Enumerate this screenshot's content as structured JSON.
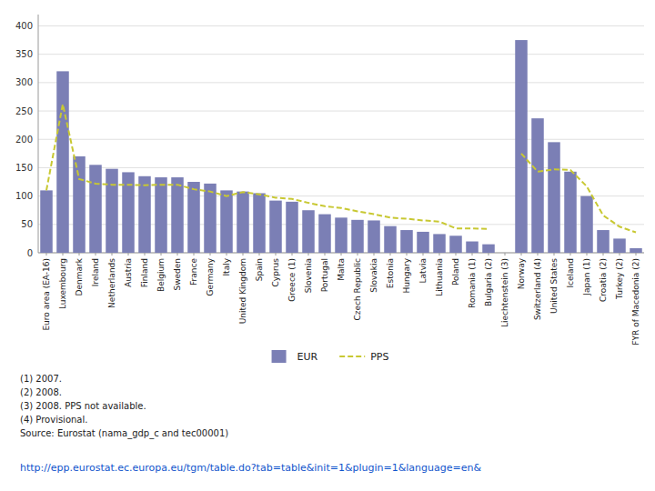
{
  "chart_data": {
    "type": "bar",
    "categories": [
      "Euro area (EA-16)",
      "Luxembourg",
      "Denmark",
      "Ireland",
      "Netherlands",
      "Austria",
      "Finland",
      "Belgium",
      "Sweden",
      "France",
      "Germany",
      "Italy",
      "United Kingdom",
      "Spain",
      "Cyprus",
      "Greece (1)",
      "Slovenia",
      "Portugal",
      "Malta",
      "Czech Republic",
      "Slovakia",
      "Estonia",
      "Hungary",
      "Latvia",
      "Lithuania",
      "Poland",
      "Romania (1)",
      "Bulgaria (2)",
      "Liechtenstein (3)",
      "Norway",
      "Switzerland (4)",
      "United States",
      "Iceland",
      "Japan (1)",
      "Croatia (2)",
      "Turkey (2)",
      "FYR of Macedonia (2)"
    ],
    "series": [
      {
        "name": "EUR",
        "type": "bar",
        "color": "#7b7fb5",
        "values": [
          110,
          320,
          170,
          155,
          148,
          142,
          135,
          133,
          133,
          125,
          122,
          110,
          108,
          105,
          92,
          90,
          75,
          68,
          62,
          58,
          57,
          47,
          40,
          37,
          33,
          30,
          20,
          15,
          0,
          375,
          237,
          195,
          143,
          100,
          40,
          25,
          8
        ]
      },
      {
        "name": "PPS",
        "type": "line",
        "line_style": "dashed",
        "color": "#c8c832",
        "values": [
          110,
          262,
          130,
          122,
          120,
          120,
          119,
          120,
          120,
          112,
          108,
          100,
          107,
          103,
          97,
          95,
          88,
          82,
          79,
          73,
          68,
          62,
          60,
          57,
          55,
          43,
          43,
          42,
          null,
          175,
          143,
          147,
          146,
          117,
          66,
          46,
          36
        ]
      }
    ],
    "ylim": [
      0,
      420
    ],
    "yticks": [
      0,
      50,
      100,
      150,
      200,
      250,
      300,
      350,
      400
    ],
    "grid": true,
    "legend": "bottom",
    "annotations": [
      "(1) 2007.",
      "(2) 2008.",
      "(3) 2008. PPS not available.",
      "(4) Provisional.",
      "Source: Eurostat (nama_gdp_c and tec00001)",
      "http://epp.eurostat.ec.europa.eu/tgm/table.do?tab=table&init=1&plugin=1&language=en&"
    ]
  }
}
